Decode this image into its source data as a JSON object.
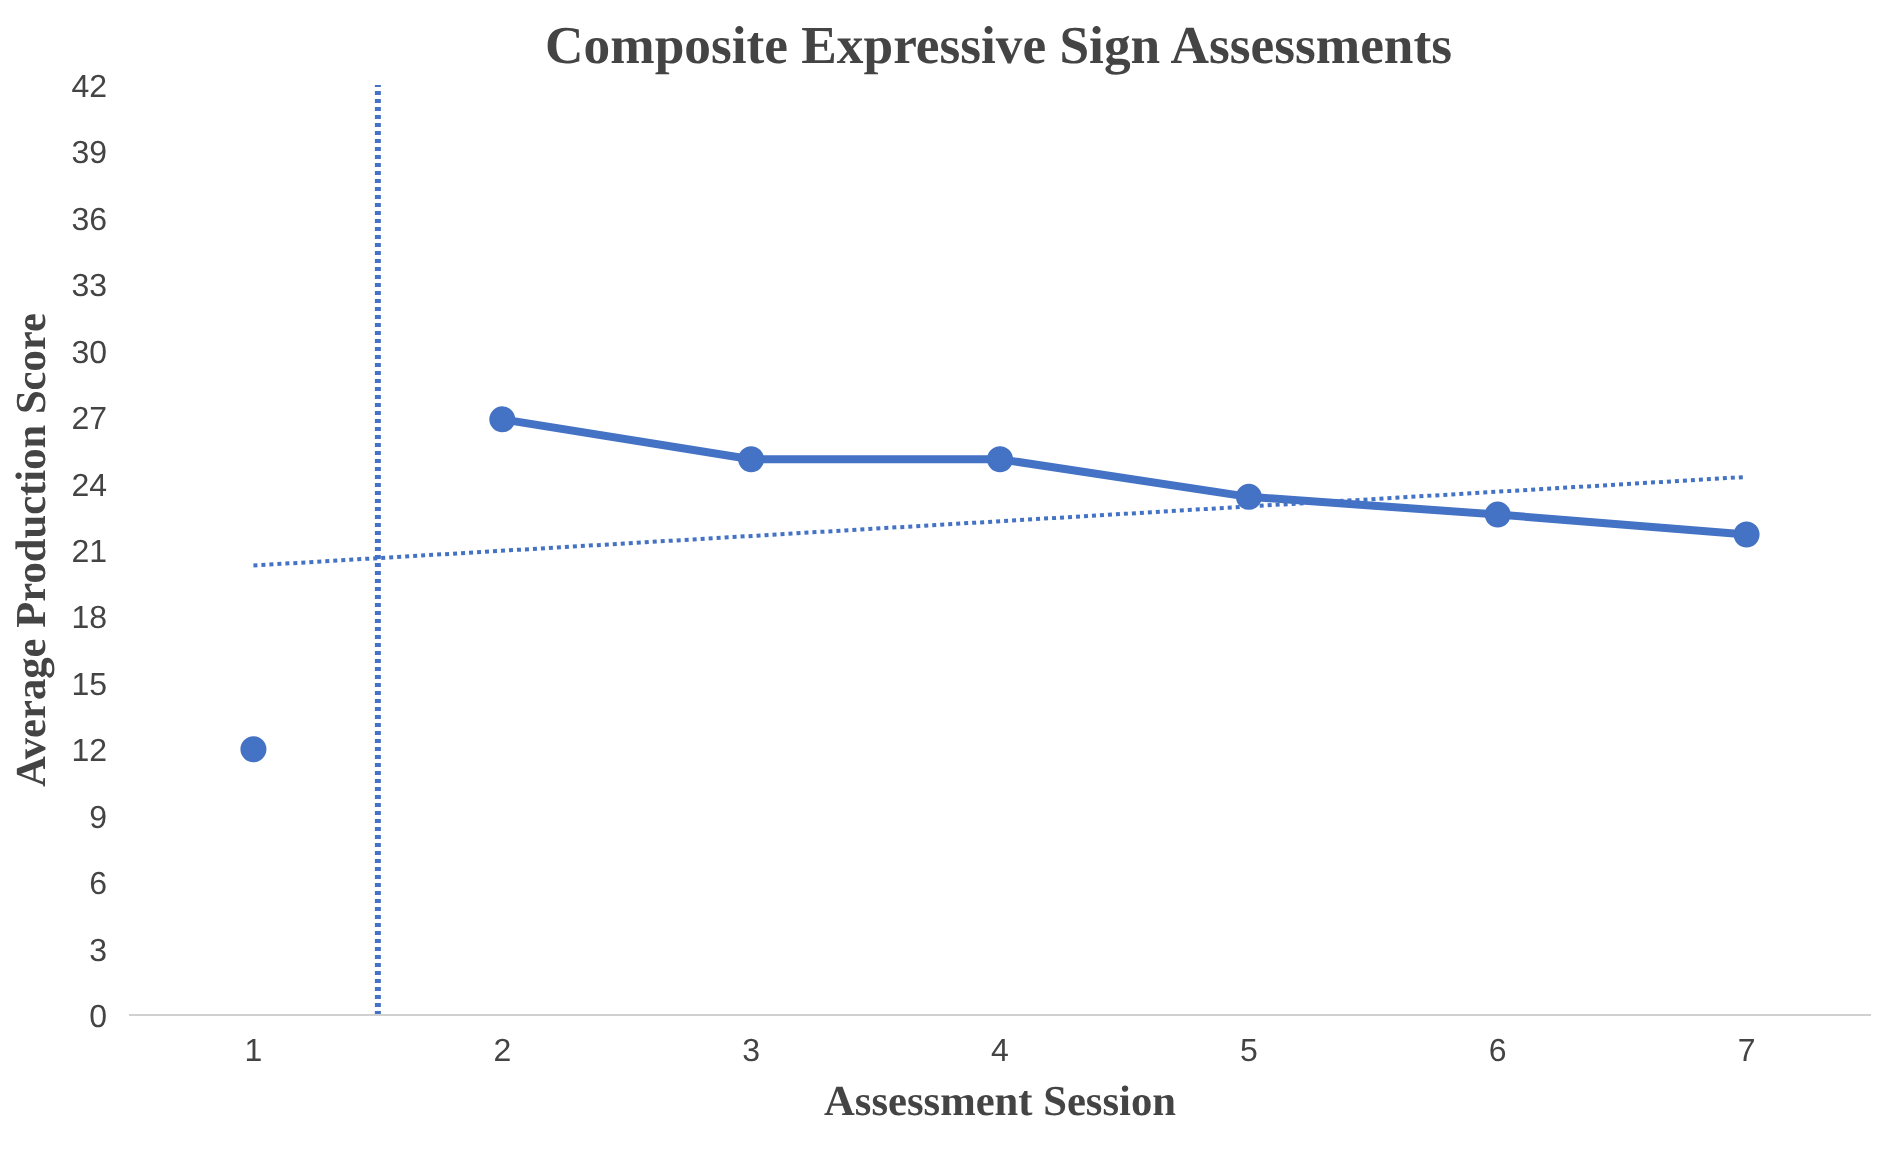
{
  "chart_data": {
    "type": "line",
    "title": "Composite Expressive Sign Assessments",
    "xlabel": "Assessment Session",
    "ylabel": "Average Production Score",
    "xlim": [
      0.5,
      7.5
    ],
    "xticks": [
      1,
      2,
      3,
      4,
      5,
      6,
      7
    ],
    "ylim": [
      0,
      42
    ],
    "yticks": [
      0,
      3,
      6,
      9,
      12,
      15,
      18,
      21,
      24,
      27,
      30,
      33,
      36,
      39,
      42
    ],
    "series": [
      {
        "type": "scatter",
        "color": "#4472c4",
        "x": [
          1
        ],
        "values": [
          12.0
        ],
        "marker": "circle"
      },
      {
        "color": "#4472c4",
        "x": [
          2,
          3,
          4,
          5,
          6,
          7
        ],
        "values": [
          26.9,
          25.1,
          25.1,
          23.4,
          22.6,
          21.7
        ],
        "marker": "circle",
        "line_style": "solid"
      },
      {
        "type": "line",
        "color": "#4472c4",
        "x": [
          1,
          7
        ],
        "values": [
          20.3,
          24.3
        ],
        "marker": "none",
        "line_style": "dotted"
      }
    ],
    "ref_lines": [
      {
        "axis": "x",
        "value": 1.5,
        "label": null,
        "color": "#4472c4",
        "line_style": "dotted"
      }
    ],
    "grid": false
  }
}
